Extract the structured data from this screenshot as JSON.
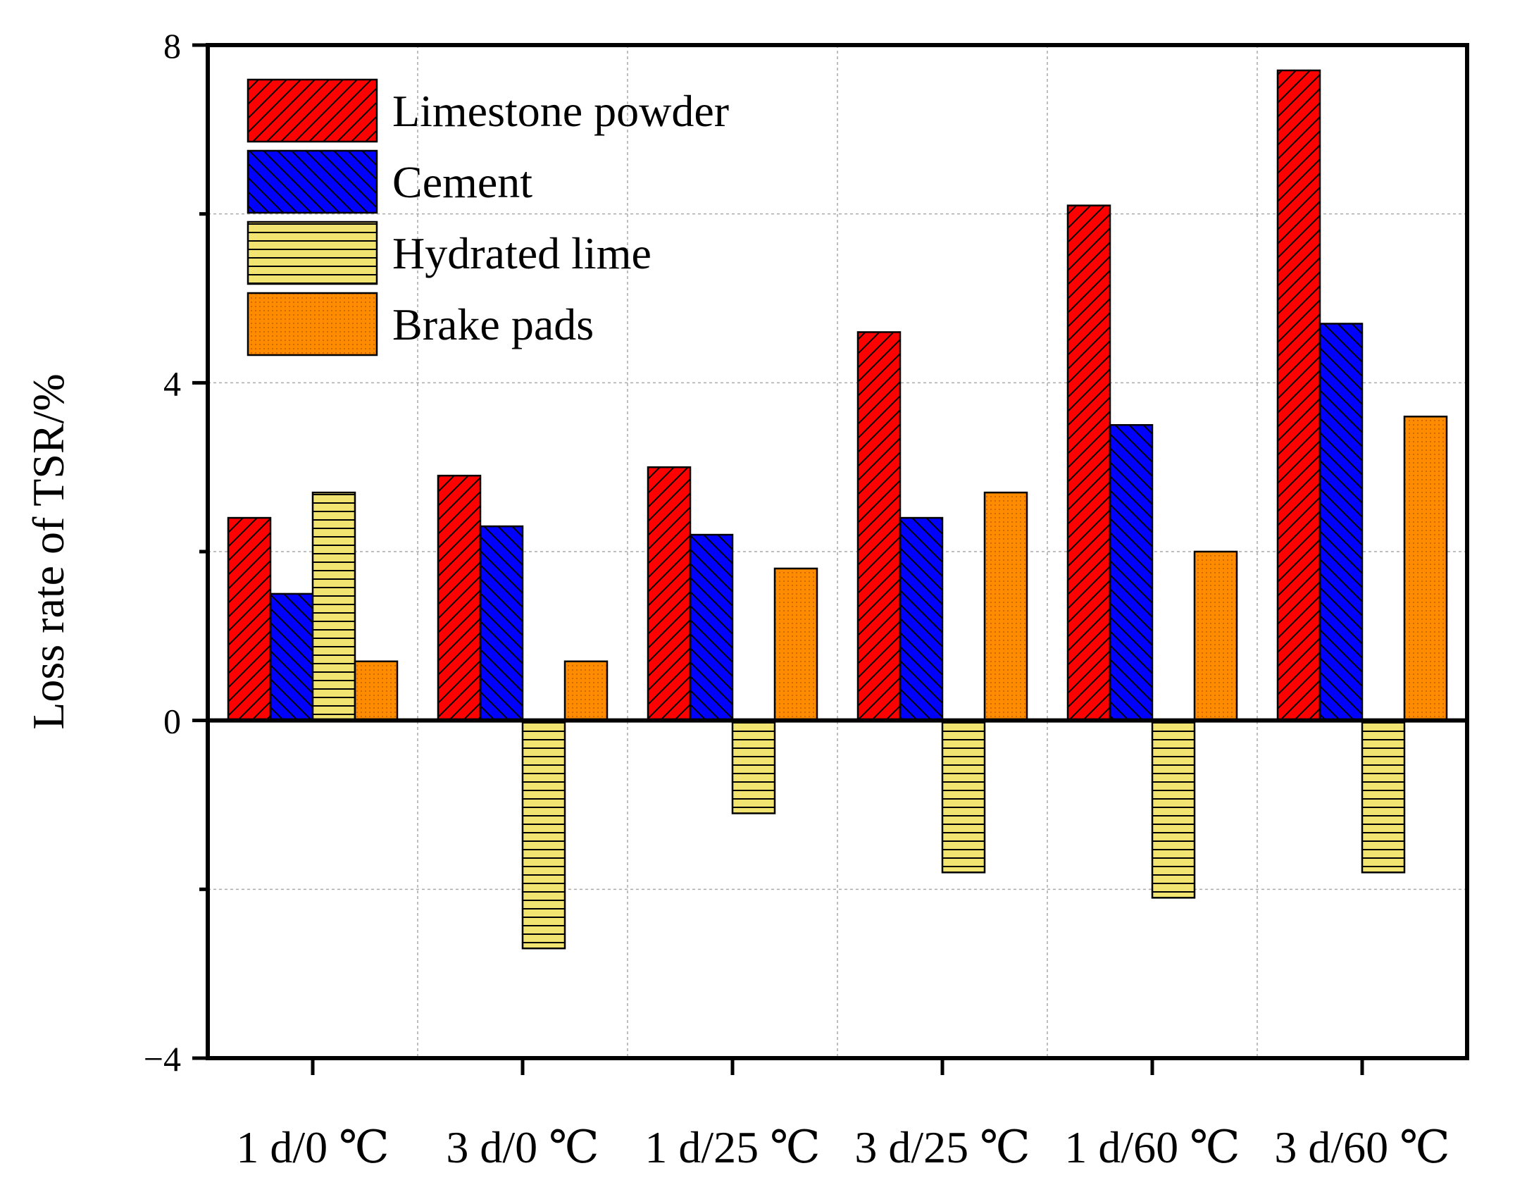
{
  "chart_data": {
    "type": "bar",
    "title": "",
    "xlabel": "",
    "ylabel": "Loss rate of TSR/%",
    "ylim": [
      -4,
      8
    ],
    "yticks": [
      -4,
      0,
      4,
      8
    ],
    "grid": true,
    "legend_position": "top-left",
    "categories": [
      "1 d/0 ℃",
      "3 d/0 ℃",
      "1 d/25 ℃",
      "3 d/25 ℃",
      "1 d/60 ℃",
      "3 d/60 ℃"
    ],
    "series": [
      {
        "name": "Limestone powder",
        "values": [
          2.4,
          2.9,
          3.0,
          4.6,
          6.1,
          7.7
        ],
        "color": "#ff0000",
        "pattern": "diag-right"
      },
      {
        "name": "Cement",
        "values": [
          1.5,
          2.3,
          2.2,
          2.4,
          3.5,
          4.7
        ],
        "color": "#0000ff",
        "pattern": "diag-left"
      },
      {
        "name": "Hydrated lime",
        "values": [
          2.7,
          -2.7,
          -1.1,
          -1.8,
          -2.1,
          -1.8
        ],
        "color": "#f2e470",
        "pattern": "horizontal"
      },
      {
        "name": "Brake pads",
        "values": [
          0.7,
          0.7,
          1.8,
          2.7,
          2.0,
          3.6
        ],
        "color": "#ff8c00",
        "pattern": "dots"
      }
    ]
  }
}
